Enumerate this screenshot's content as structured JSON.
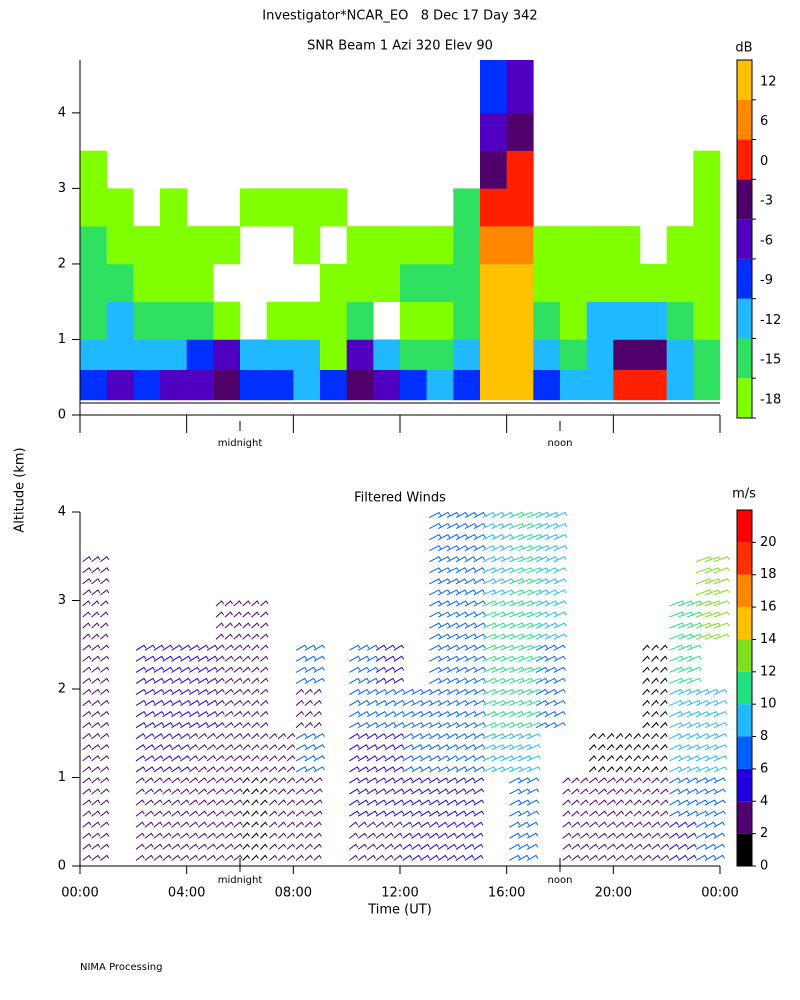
{
  "title": "Investigator*NCAR_EO   8 Dec 17 Day 342",
  "y_label": "Altitude (km)",
  "footer": "NIMA Processing",
  "annotations": [
    {
      "text": "midnight",
      "x": 6
    },
    {
      "text": "noon",
      "x": 18
    }
  ],
  "chart_data": [
    {
      "type": "heatmap",
      "title": "SNR Beam 1 Azi 320 Elev 90",
      "x_bins": [
        0,
        1,
        2,
        3,
        4,
        5,
        6,
        7,
        8,
        9,
        10,
        11,
        12,
        13,
        14,
        15,
        16,
        17,
        18,
        19,
        20,
        21,
        22,
        23,
        24
      ],
      "y_bins": [
        0.2,
        0.6,
        1,
        1.5,
        2,
        2.5,
        3,
        3.5,
        4,
        4.7
      ],
      "values": [
        [
          -7,
          -4,
          -7,
          -4,
          -4,
          -1,
          -7,
          -7,
          -10,
          -7,
          -1,
          -4,
          -7,
          -10,
          -7,
          14,
          14,
          -7,
          -10,
          -10,
          3,
          3,
          -10,
          -13
        ],
        [
          -10,
          -10,
          -10,
          -10,
          -7,
          -4,
          -10,
          -10,
          -10,
          -16,
          -4,
          -10,
          -13,
          -13,
          -10,
          14,
          14,
          -10,
          -13,
          -10,
          -1,
          -1,
          -10,
          -13
        ],
        [
          -13,
          -10,
          -13,
          -13,
          -13,
          -16,
          null,
          -16,
          -16,
          -16,
          -13,
          null,
          -16,
          -16,
          -13,
          14,
          14,
          -13,
          -16,
          -10,
          -10,
          -10,
          -13,
          -16
        ],
        [
          -13,
          -13,
          -16,
          -16,
          -16,
          null,
          null,
          null,
          null,
          -16,
          -16,
          -16,
          -13,
          -13,
          -13,
          14,
          14,
          -16,
          -16,
          -16,
          -16,
          -16,
          -16,
          -16
        ],
        [
          -13,
          -16,
          -16,
          -16,
          -16,
          -16,
          null,
          null,
          -16,
          null,
          -16,
          -16,
          -16,
          -16,
          -13,
          9,
          9,
          -16,
          -16,
          -16,
          -16,
          null,
          -16,
          -16
        ],
        [
          -16,
          -16,
          null,
          -16,
          null,
          null,
          -16,
          -16,
          -16,
          -16,
          null,
          null,
          null,
          null,
          -13,
          3,
          3,
          null,
          null,
          null,
          null,
          null,
          null,
          -16
        ],
        [
          -16,
          null,
          null,
          null,
          null,
          null,
          null,
          null,
          null,
          null,
          null,
          null,
          null,
          null,
          null,
          -1,
          3,
          null,
          null,
          null,
          null,
          null,
          null,
          -16
        ],
        [
          null,
          null,
          null,
          null,
          null,
          null,
          null,
          null,
          null,
          null,
          null,
          null,
          null,
          null,
          null,
          -4,
          -1,
          null,
          null,
          null,
          null,
          null,
          null,
          null
        ],
        [
          null,
          null,
          null,
          null,
          null,
          null,
          null,
          null,
          null,
          null,
          null,
          null,
          null,
          null,
          null,
          -7,
          -4,
          null,
          null,
          null,
          null,
          null,
          null,
          null
        ]
      ],
      "xlim": [
        0,
        24
      ],
      "xticks": [
        0,
        4,
        8,
        12,
        16,
        20,
        24
      ],
      "ylim": [
        0,
        4.7
      ],
      "yticks": [
        0,
        1,
        2,
        3,
        4
      ],
      "colorbar": {
        "label": "dB",
        "levels": [
          -18,
          -15,
          -12,
          -9,
          -6,
          -3,
          0,
          6,
          12
        ],
        "colors": [
          "#80ff00",
          "#30e060",
          "#20b8ff",
          "#0030ff",
          "#5000c0",
          "#50006a",
          "#ff2000",
          "#ff8800",
          "#ffc000"
        ]
      }
    },
    {
      "type": "barbs",
      "title": "Filtered Winds",
      "x_label": "Time (UT)",
      "x_bins": [
        0,
        1,
        2,
        3,
        4,
        5,
        6,
        7,
        8,
        9,
        10,
        11,
        12,
        13,
        14,
        15,
        16,
        17,
        18,
        19,
        20,
        21,
        22,
        23,
        24
      ],
      "y_bins": [
        0,
        0.5,
        1,
        1.5,
        2,
        2.5,
        3,
        3.5,
        4
      ],
      "values": [
        [
          3,
          null,
          3,
          3,
          3,
          3,
          1,
          2,
          2,
          null,
          3,
          3,
          4,
          4,
          4,
          null,
          6,
          null,
          3,
          3,
          3,
          3,
          4,
          6
        ],
        [
          3,
          null,
          3,
          3,
          3,
          3,
          1,
          2,
          3,
          null,
          5,
          5,
          5,
          5,
          5,
          null,
          7,
          null,
          2,
          3,
          2,
          2,
          6,
          7
        ],
        [
          3,
          null,
          4,
          4,
          3,
          3,
          2,
          2,
          6,
          null,
          5,
          5,
          6,
          6,
          6,
          9,
          9,
          null,
          null,
          1,
          1,
          1,
          8,
          9
        ],
        [
          3,
          null,
          5,
          5,
          5,
          3,
          2,
          null,
          2,
          null,
          6,
          6,
          7,
          7,
          7,
          10,
          10,
          7,
          null,
          null,
          null,
          1,
          9,
          9
        ],
        [
          3,
          null,
          5,
          5,
          5,
          3,
          2,
          null,
          6,
          null,
          6,
          5,
          null,
          7,
          7,
          10,
          11,
          7,
          null,
          null,
          null,
          1,
          10,
          null
        ],
        [
          2,
          null,
          null,
          null,
          null,
          2,
          2,
          null,
          null,
          null,
          null,
          null,
          null,
          7,
          7,
          10,
          11,
          8,
          null,
          null,
          null,
          null,
          11,
          12
        ],
        [
          3,
          null,
          null,
          null,
          null,
          null,
          null,
          null,
          null,
          null,
          null,
          null,
          null,
          7,
          6,
          9,
          11,
          8,
          null,
          null,
          null,
          null,
          null,
          12
        ],
        [
          null,
          null,
          null,
          null,
          null,
          null,
          null,
          null,
          null,
          null,
          null,
          null,
          null,
          7,
          7,
          8,
          11,
          9,
          null,
          null,
          null,
          null,
          null,
          null
        ]
      ],
      "xlim": [
        0,
        24
      ],
      "xticks": [
        {
          "value": 0,
          "label": "00:00"
        },
        {
          "value": 4,
          "label": "04:00"
        },
        {
          "value": 8,
          "label": "08:00"
        },
        {
          "value": 12,
          "label": "12:00"
        },
        {
          "value": 16,
          "label": "16:00"
        },
        {
          "value": 20,
          "label": "20:00"
        },
        {
          "value": 24,
          "label": "00:00"
        }
      ],
      "ylim": [
        0,
        4
      ],
      "yticks": [
        0,
        1,
        2,
        3,
        4
      ],
      "colorbar": {
        "label": "m/s",
        "clim": [
          0,
          22
        ],
        "ticks": [
          0,
          2,
          4,
          6,
          8,
          10,
          12,
          14,
          16,
          18,
          20
        ],
        "colors": [
          "#000000",
          "#500070",
          "#2000e0",
          "#0060ff",
          "#20b8ff",
          "#20e080",
          "#80e020",
          "#ffc000",
          "#ff8800",
          "#ff3000",
          "#ff0000"
        ]
      }
    }
  ]
}
